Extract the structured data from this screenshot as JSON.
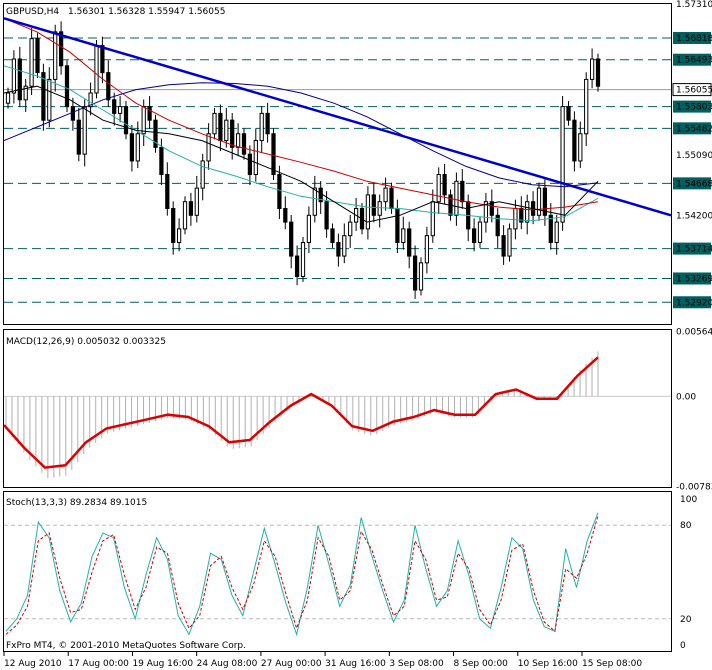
{
  "chart_data": {
    "type": "candlestick",
    "symbol": "GBPUSD,H4",
    "ohlc_header": "1.56301 1.56328 1.55947 1.56055",
    "price": {
      "ylim": [
        1.526,
        1.5731
      ],
      "ticks": [
        {
          "v": 1.5731,
          "label": "1.57310"
        },
        {
          "v": 1.5681,
          "label": "1.56818",
          "kind": "hline"
        },
        {
          "v": 1.5649,
          "label": "1.56493",
          "kind": "hline"
        },
        {
          "v": 1.5605,
          "label": "1.56055",
          "kind": "current"
        },
        {
          "v": 1.558,
          "label": "1.55803",
          "kind": "hline"
        },
        {
          "v": 1.5548,
          "label": "1.55482",
          "kind": "hline"
        },
        {
          "v": 1.5509,
          "label": "1.55090"
        },
        {
          "v": 1.5467,
          "label": "1.54668",
          "kind": "hline"
        },
        {
          "v": 1.542,
          "label": "1.54200"
        },
        {
          "v": 1.5371,
          "label": "1.53714",
          "kind": "hline"
        },
        {
          "v": 1.5327,
          "label": "1.53269",
          "kind": "hline"
        },
        {
          "v": 1.5292,
          "label": "1.52920",
          "kind": "hline"
        }
      ],
      "closes": [
        1.56,
        1.565,
        1.559,
        1.561,
        1.568,
        1.563,
        1.556,
        1.562,
        1.569,
        1.564,
        1.558,
        1.556,
        1.551,
        1.558,
        1.56,
        1.567,
        1.563,
        1.559,
        1.557,
        1.558,
        1.554,
        1.55,
        1.554,
        1.558,
        1.556,
        1.552,
        1.548,
        1.543,
        1.538,
        1.54,
        1.544,
        1.542,
        1.546,
        1.55,
        1.554,
        1.557,
        1.553,
        1.556,
        1.552,
        1.554,
        1.551,
        1.548,
        1.553,
        1.557,
        1.554,
        1.548,
        1.543,
        1.541,
        1.536,
        1.533,
        1.538,
        1.542,
        1.546,
        1.544,
        1.54,
        1.538,
        1.536,
        1.539,
        1.541,
        1.543,
        1.54,
        1.545,
        1.542,
        1.544,
        1.546,
        1.543,
        1.538,
        1.54,
        1.536,
        1.531,
        1.535,
        1.539,
        1.544,
        1.548,
        1.545,
        1.542,
        1.547,
        1.544,
        1.54,
        1.538,
        1.541,
        1.544,
        1.542,
        1.539,
        1.536,
        1.54,
        1.543,
        1.541,
        1.544,
        1.542,
        1.546,
        1.542,
        1.538,
        1.541,
        1.558,
        1.556,
        1.55,
        1.554,
        1.562,
        1.565,
        1.561
      ],
      "ma_blue": [
        1.553,
        1.555,
        1.557,
        1.559,
        1.5605,
        1.5612,
        1.5615,
        1.5614,
        1.561,
        1.56,
        1.5585,
        1.5565,
        1.554,
        1.5515,
        1.5492,
        1.5475,
        1.5465,
        1.5462,
        1.5468
      ],
      "ma_green": [
        1.564,
        1.5625,
        1.5605,
        1.5575,
        1.5545,
        1.5515,
        1.5492,
        1.5478,
        1.5462,
        1.5448,
        1.544,
        1.5432,
        1.543,
        1.5424,
        1.542,
        1.5415,
        1.5412,
        1.5418,
        1.5445
      ],
      "ma_red": [
        1.571,
        1.569,
        1.566,
        1.562,
        1.5585,
        1.556,
        1.554,
        1.5522,
        1.551,
        1.5498,
        1.5485,
        1.547,
        1.546,
        1.545,
        1.544,
        1.5432,
        1.5428,
        1.5432,
        1.544
      ],
      "ma_black": [
        1.56,
        1.561,
        1.559,
        1.556,
        1.5545,
        1.554,
        1.553,
        1.551,
        1.549,
        1.547,
        1.544,
        1.541,
        1.542,
        1.544,
        1.543,
        1.544,
        1.543,
        1.542,
        1.547
      ],
      "trendline": [
        1.571,
        1.542
      ]
    },
    "macd": {
      "title": "MACD(12,26,9) 0.005032 0.003325",
      "ylim": [
        -0.0078,
        0.0056
      ],
      "ticks": [
        {
          "v": 0.00564,
          "label": "0.00564"
        },
        {
          "v": 0.0,
          "label": "0.00"
        },
        {
          "v": -0.00783,
          "label": "-0.00783"
        }
      ],
      "signal": [
        -0.0025,
        -0.0045,
        -0.0062,
        -0.006,
        -0.004,
        -0.0028,
        -0.0024,
        -0.002,
        -0.0016,
        -0.0018,
        -0.0026,
        -0.004,
        -0.0038,
        -0.0022,
        -0.0008,
        0.0002,
        -0.0008,
        -0.0026,
        -0.003,
        -0.0022,
        -0.0018,
        -0.0012,
        -0.0016,
        -0.0016,
        0.0002,
        0.0006,
        -0.0002,
        -0.0002,
        0.0018,
        0.0034
      ]
    },
    "stoch": {
      "title": "Stoch(13,3,3) 89.2834 89.1015",
      "ylim": [
        0,
        100
      ],
      "ticks": [
        {
          "v": 100,
          "label": "100",
          "kind": "edge"
        },
        {
          "v": 80,
          "label": "80",
          "kind": "level"
        },
        {
          "v": 20,
          "label": "20",
          "kind": "level"
        },
        {
          "v": 0,
          "label": "0",
          "kind": "edge"
        }
      ],
      "k": [
        12,
        20,
        35,
        82,
        72,
        38,
        18,
        30,
        60,
        75,
        72,
        40,
        20,
        48,
        72,
        58,
        22,
        10,
        28,
        62,
        58,
        35,
        22,
        50,
        78,
        55,
        30,
        10,
        40,
        80,
        55,
        28,
        42,
        85,
        60,
        38,
        18,
        32,
        80,
        52,
        28,
        38,
        70,
        48,
        20,
        14,
        40,
        72,
        65,
        32,
        15,
        12,
        65,
        40,
        70,
        88
      ],
      "d": [
        10,
        16,
        28,
        70,
        75,
        46,
        24,
        26,
        50,
        70,
        74,
        48,
        26,
        40,
        66,
        62,
        30,
        14,
        22,
        54,
        60,
        40,
        26,
        42,
        70,
        60,
        36,
        14,
        32,
        72,
        60,
        32,
        38,
        76,
        64,
        42,
        22,
        28,
        70,
        58,
        32,
        34,
        62,
        52,
        26,
        16,
        32,
        64,
        68,
        38,
        18,
        12,
        52,
        46,
        62,
        86
      ]
    },
    "x_labels": [
      "12 Aug 2010",
      "17 Aug 00:00",
      "19 Aug 16:00",
      "24 Aug 08:00",
      "27 Aug 00:00",
      "31 Aug 16:00",
      "3 Sep 08:00",
      "8 Sep 00:00",
      "10 Sep 16:00",
      "15 Sep 08:00"
    ],
    "footer": "FxPro MT4, © 2001-2010 MetaQuotes Software Corp.",
    "colors": {
      "candle": "#000000",
      "trend": "#0000cc",
      "ma_blue": "#00008b",
      "ma_green": "#20b2aa",
      "ma_red": "#cc0000",
      "ma_black": "#000000",
      "hline": "#006060",
      "macd_signal": "#dd0000",
      "macd_hist": "#b0b0b0",
      "stoch_k": "#20b2aa",
      "stoch_d": "#cc0000"
    }
  }
}
